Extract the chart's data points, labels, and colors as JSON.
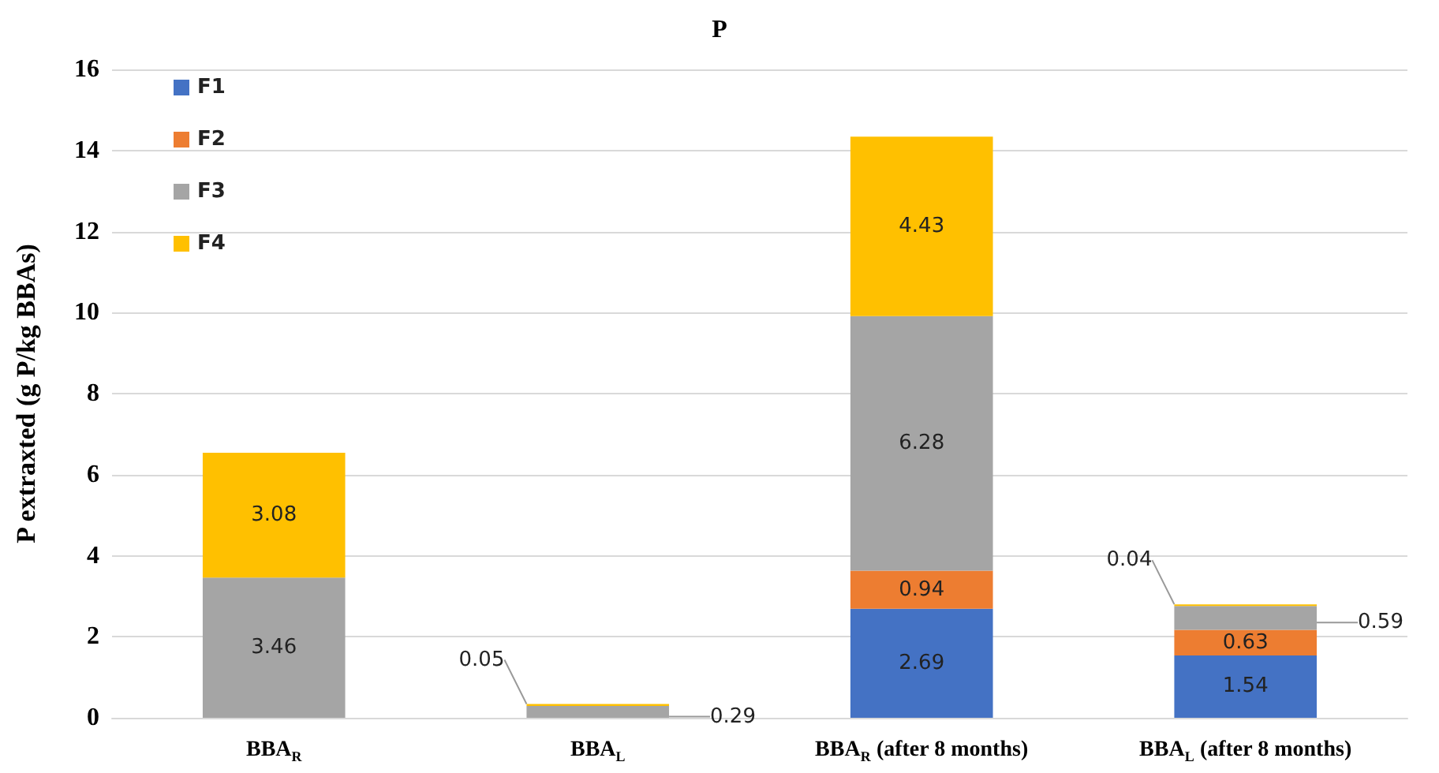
{
  "chart_data": {
    "type": "bar",
    "title": "P",
    "ylabel": "P extraxted (g P/kg BBAs)",
    "categories": [
      "BBA$_{R}$",
      "BBA$_{L}$",
      "BBA$_{R}$ (after 8 months)",
      "BBA$_{L}$ (after 8 months)"
    ],
    "stacked": true,
    "ylim": [
      0,
      16
    ],
    "yticks": [
      0,
      2,
      4,
      6,
      8,
      10,
      12,
      14,
      16
    ],
    "grid": "y",
    "legend": "top left",
    "series": [
      {
        "name": "F1",
        "color": "#4472c4",
        "values": [
          0,
          0,
          2.69,
          1.54
        ],
        "value_labels": [
          null,
          null,
          "2.69",
          "1.54"
        ]
      },
      {
        "name": "F2",
        "color": "#ed7d31",
        "values": [
          0,
          0,
          0.94,
          0.63
        ],
        "value_labels": [
          null,
          null,
          "0.94",
          "0.63"
        ]
      },
      {
        "name": "F3",
        "color": "#a5a5a5",
        "values": [
          3.46,
          0.29,
          6.28,
          0.59
        ],
        "value_labels": [
          "3.46",
          "0.29",
          "6.28",
          "0.59"
        ]
      },
      {
        "name": "F4",
        "color": "#ffc000",
        "values": [
          3.08,
          0.05,
          4.43,
          0.04
        ],
        "value_labels": [
          "3.08",
          "0.05",
          "4.43",
          "0.04"
        ]
      }
    ]
  }
}
